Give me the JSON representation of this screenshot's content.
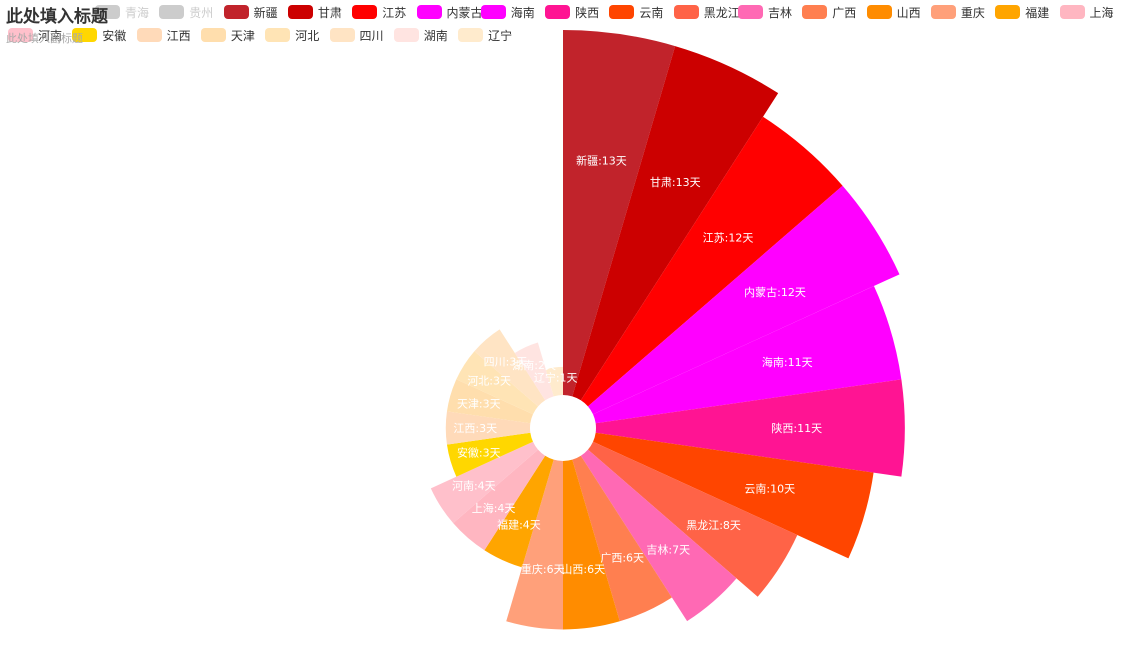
{
  "title": "此处填入标题",
  "subtitle": "此处填入副标题",
  "legend": {
    "items": [
      {
        "name": "青海",
        "color": "#cccccc",
        "disabled": true
      },
      {
        "name": "贵州",
        "color": "#cccccc",
        "disabled": true
      },
      {
        "name": "新疆",
        "color": "#C1232B",
        "disabled": false
      },
      {
        "name": "甘肃",
        "color": "#CC0000",
        "disabled": false
      },
      {
        "name": "江苏",
        "color": "#FF0000",
        "disabled": false
      },
      {
        "name": "内蒙古",
        "color": "#FF00FF",
        "disabled": false
      },
      {
        "name": "海南",
        "color": "#FF00FF",
        "disabled": false
      },
      {
        "name": "陕西",
        "color": "#FF1493",
        "disabled": false
      },
      {
        "name": "云南",
        "color": "#FF4500",
        "disabled": false
      },
      {
        "name": "黑龙江",
        "color": "#FF6347",
        "disabled": false
      },
      {
        "name": "吉林",
        "color": "#FF69B4",
        "disabled": false
      },
      {
        "name": "广西",
        "color": "#FF7F50",
        "disabled": false
      },
      {
        "name": "山西",
        "color": "#FF8C00",
        "disabled": false
      },
      {
        "name": "重庆",
        "color": "#FFA07A",
        "disabled": false
      },
      {
        "name": "福建",
        "color": "#FFA500",
        "disabled": false
      },
      {
        "name": "上海",
        "color": "#FFB6C1",
        "disabled": false
      },
      {
        "name": "河南",
        "color": "#FFC0CB",
        "disabled": false
      },
      {
        "name": "安徽",
        "color": "#FFD700",
        "disabled": false
      },
      {
        "name": "江西",
        "color": "#FFDAB9",
        "disabled": false
      },
      {
        "name": "天津",
        "color": "#FFDEAD",
        "disabled": false
      },
      {
        "name": "河北",
        "color": "#FFE4B5",
        "disabled": false
      },
      {
        "name": "四川",
        "color": "#FFE4C4",
        "disabled": false
      },
      {
        "name": "湖南",
        "color": "#FFE4E1",
        "disabled": false
      },
      {
        "name": "辽宁",
        "color": "#FFEBCD",
        "disabled": false
      }
    ]
  },
  "chart_data": {
    "type": "pie",
    "rose_type": "area",
    "label_unit": "天",
    "series": [
      {
        "name": "新疆",
        "value": 13,
        "color": "#C1232B"
      },
      {
        "name": "甘肃",
        "value": 13,
        "color": "#CC0000"
      },
      {
        "name": "江苏",
        "value": 12,
        "color": "#FF0000"
      },
      {
        "name": "内蒙古",
        "value": 12,
        "color": "#FF00FF"
      },
      {
        "name": "海南",
        "value": 11,
        "color": "#FF00FF"
      },
      {
        "name": "陕西",
        "value": 11,
        "color": "#FF1493"
      },
      {
        "name": "云南",
        "value": 10,
        "color": "#FF4500"
      },
      {
        "name": "黑龙江",
        "value": 8,
        "color": "#FF6347"
      },
      {
        "name": "吉林",
        "value": 7,
        "color": "#FF69B4"
      },
      {
        "name": "广西",
        "value": 6,
        "color": "#FF7F50"
      },
      {
        "name": "山西",
        "value": 6,
        "color": "#FF8C00"
      },
      {
        "name": "重庆",
        "value": 6,
        "color": "#FFA07A"
      },
      {
        "name": "福建",
        "value": 4,
        "color": "#FFA500"
      },
      {
        "name": "上海",
        "value": 4,
        "color": "#FFB6C1"
      },
      {
        "name": "河南",
        "value": 4,
        "color": "#FFC0CB"
      },
      {
        "name": "安徽",
        "value": 3,
        "color": "#FFD700"
      },
      {
        "name": "江西",
        "value": 3,
        "color": "#FFDAB9"
      },
      {
        "name": "天津",
        "value": 3,
        "color": "#FFDEAD"
      },
      {
        "name": "河北",
        "value": 3,
        "color": "#FFE4B5"
      },
      {
        "name": "四川",
        "value": 3,
        "color": "#FFE4C4"
      },
      {
        "name": "湖南",
        "value": 2,
        "color": "#FFE4E1"
      },
      {
        "name": "辽宁",
        "value": 1,
        "color": "#FFEBCD"
      }
    ]
  }
}
